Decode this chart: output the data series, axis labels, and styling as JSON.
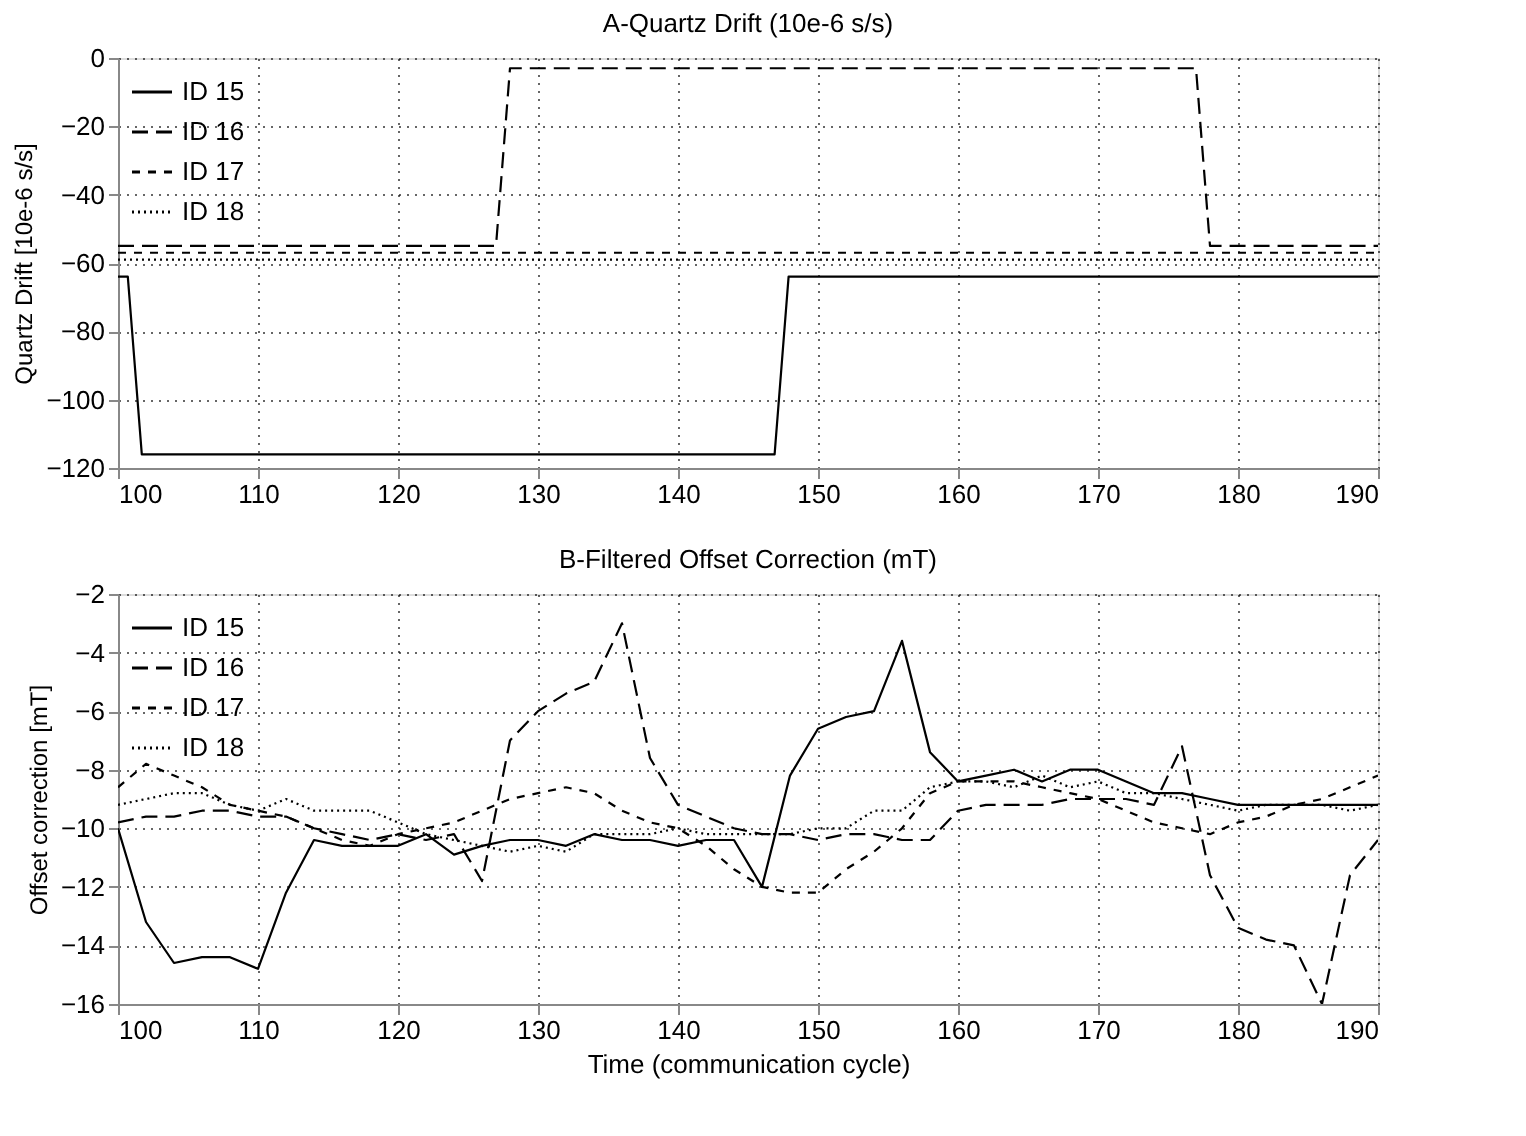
{
  "chart_data": [
    {
      "type": "line",
      "title": "A-Quartz Drift (10e-6 s/s)",
      "ylabel": "Quartz Drift [10e-6 s/s]",
      "xlim": [
        100,
        190
      ],
      "xticks": [
        100,
        110,
        120,
        130,
        140,
        150,
        160,
        170,
        180,
        190
      ],
      "ylim": [
        -120,
        0
      ],
      "yticks": [
        -120,
        -100,
        -80,
        -60,
        -40,
        -20,
        0
      ],
      "grid": true,
      "legend": "top left",
      "series": [
        {
          "name": "ID 15",
          "color": "#000000",
          "line_style": "solid",
          "x": [
            100,
            100.7,
            101.7,
            146.9,
            147.9,
            190
          ],
          "values": [
            -64,
            -64,
            -116,
            -116,
            -64,
            -64
          ]
        },
        {
          "name": "ID 16",
          "color": "#000000",
          "line_style": "dashed",
          "x": [
            100,
            127,
            128,
            177,
            178,
            190
          ],
          "values": [
            -55,
            -55,
            -3,
            -3,
            -55,
            -55
          ]
        },
        {
          "name": "ID 17",
          "color": "#000000",
          "line_style": "dashed",
          "x": [
            100,
            190
          ],
          "values": [
            -57,
            -57
          ]
        },
        {
          "name": "ID 18",
          "color": "#000000",
          "line_style": "dotted",
          "x": [
            100,
            190
          ],
          "values": [
            -59,
            -59
          ]
        }
      ]
    },
    {
      "type": "line",
      "title": "B-Filtered Offset Correction (mT)",
      "xlabel": "Time (communication cycle)",
      "ylabel": "Offset correction [mT]",
      "xlim": [
        100,
        190
      ],
      "xticks": [
        100,
        110,
        120,
        130,
        140,
        150,
        160,
        170,
        180,
        190
      ],
      "ylim": [
        -16,
        -2
      ],
      "yticks": [
        -16,
        -14,
        -12,
        -10,
        -8,
        -6,
        -4,
        -2
      ],
      "grid": true,
      "legend": "top left",
      "x": [
        100,
        102,
        104,
        106,
        108,
        110,
        112,
        114,
        116,
        118,
        120,
        122,
        124,
        126,
        128,
        130,
        132,
        134,
        136,
        138,
        140,
        142,
        144,
        146,
        148,
        150,
        152,
        154,
        156,
        158,
        160,
        162,
        164,
        166,
        168,
        170,
        172,
        174,
        176,
        178,
        180,
        182,
        184,
        186,
        188,
        190
      ],
      "series": [
        {
          "name": "ID 15",
          "color": "#000000",
          "line_style": "solid",
          "values": [
            -10,
            -13.2,
            -14.6,
            -14.4,
            -14.4,
            -14.8,
            -12.2,
            -10.4,
            -10.6,
            -10.6,
            -10.6,
            -10.2,
            -10.9,
            -10.6,
            -10.4,
            -10.4,
            -10.6,
            -10.2,
            -10.4,
            -10.4,
            -10.6,
            -10.4,
            -10.4,
            -12,
            -8.2,
            -6.6,
            -6.2,
            -6,
            -3.6,
            -7.4,
            -8.4,
            -8.2,
            -8,
            -8.4,
            -8,
            -8,
            -8.4,
            -8.8,
            -8.8,
            -9,
            -9.2,
            -9.2,
            -9.2,
            -9.2,
            -9.2,
            -9.2
          ]
        },
        {
          "name": "ID 16",
          "color": "#000000",
          "line_style": "dashed",
          "values": [
            -9.8,
            -9.6,
            -9.6,
            -9.4,
            -9.4,
            -9.6,
            -9.6,
            -10,
            -10.2,
            -10.4,
            -10.2,
            -10.4,
            -10.2,
            -11.8,
            -7,
            -6,
            -5.4,
            -5,
            -3,
            -7.6,
            -9.2,
            -9.6,
            -10,
            -10.2,
            -10.2,
            -10.4,
            -10.2,
            -10.2,
            -10.4,
            -10.4,
            -9.4,
            -9.2,
            -9.2,
            -9.2,
            -9,
            -9,
            -9,
            -9.2,
            -7.2,
            -11.6,
            -13.4,
            -13.8,
            -14,
            -16,
            -11.6,
            -10.4
          ]
        },
        {
          "name": "ID 17",
          "color": "#000000",
          "line_style": "dashed",
          "values": [
            -8.6,
            -7.8,
            -8.2,
            -8.6,
            -9.2,
            -9.4,
            -9.6,
            -10,
            -10.4,
            -10.6,
            -10.2,
            -10,
            -9.8,
            -9.4,
            -9,
            -8.8,
            -8.6,
            -8.8,
            -9.4,
            -9.8,
            -10,
            -10.6,
            -11.4,
            -12,
            -12.2,
            -12.2,
            -11.4,
            -10.8,
            -10,
            -8.8,
            -8.4,
            -8.4,
            -8.4,
            -8.6,
            -8.8,
            -9,
            -9.4,
            -9.8,
            -10,
            -10.2,
            -9.8,
            -9.6,
            -9.2,
            -9,
            -8.6,
            -8.2
          ]
        },
        {
          "name": "ID 18",
          "color": "#000000",
          "line_style": "dotted",
          "values": [
            -9.2,
            -9,
            -8.8,
            -8.8,
            -9.2,
            -9.4,
            -9,
            -9.4,
            -9.4,
            -9.4,
            -9.8,
            -10.2,
            -10.4,
            -10.6,
            -10.8,
            -10.6,
            -10.8,
            -10.2,
            -10.2,
            -10.2,
            -10,
            -10.2,
            -10.2,
            -10.2,
            -10.2,
            -10,
            -10,
            -9.4,
            -9.4,
            -8.6,
            -8.4,
            -8.4,
            -8.6,
            -8.2,
            -8.6,
            -8.4,
            -8.8,
            -8.8,
            -9,
            -9.2,
            -9.4,
            -9.2,
            -9.2,
            -9.2,
            -9.4,
            -9.2
          ]
        }
      ]
    }
  ]
}
